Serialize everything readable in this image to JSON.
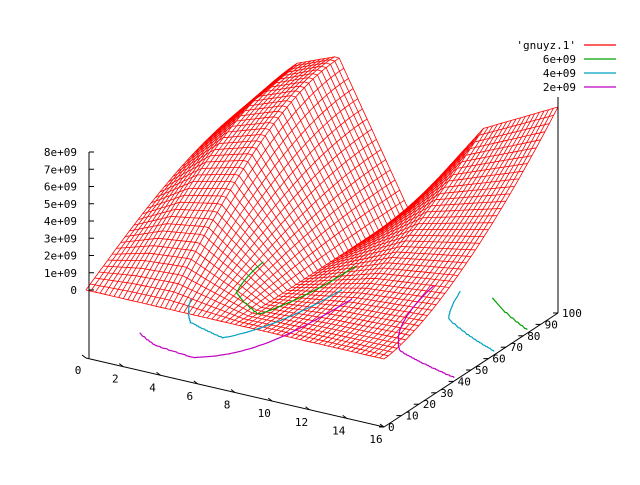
{
  "chart_data": {
    "type": "surface",
    "title": "",
    "xlabel": "",
    "ylabel": "",
    "zlabel": "",
    "grid": false,
    "legend_position": "top-right",
    "x_ticks": [
      "0",
      "2",
      "4",
      "6",
      "8",
      "10",
      "12",
      "14",
      "16"
    ],
    "y_ticks": [
      "0",
      "10",
      "20",
      "30",
      "40",
      "50",
      "60",
      "70",
      "80",
      "90",
      "100"
    ],
    "z_ticks": [
      "0",
      "1e+09",
      "2e+09",
      "3e+09",
      "4e+09",
      "5e+09",
      "6e+09",
      "7e+09",
      "8e+09"
    ],
    "xlim": [
      0,
      16
    ],
    "ylim": [
      0,
      100
    ],
    "zlim": [
      0,
      8000000000
    ],
    "surface": {
      "name": "'gnuyz.1'",
      "color": "#ff0000",
      "description_points": [
        {
          "x": 0,
          "y": 100,
          "z": 8000000000
        },
        {
          "x": 4,
          "y": 100,
          "z": 8000000000
        },
        {
          "x": 8,
          "y": 100,
          "z": 0
        },
        {
          "x": 16,
          "y": 100,
          "z": 8000000000
        },
        {
          "x": 0,
          "y": 0,
          "z": 0
        },
        {
          "x": 16,
          "y": 0,
          "z": 0
        }
      ]
    },
    "contours": [
      {
        "name": "6e+09",
        "level": 6000000000,
        "color": "#00a000"
      },
      {
        "name": "4e+09",
        "level": 4000000000,
        "color": "#00a0c0"
      },
      {
        "name": "2e+09",
        "level": 2000000000,
        "color": "#c000c0"
      }
    ]
  }
}
